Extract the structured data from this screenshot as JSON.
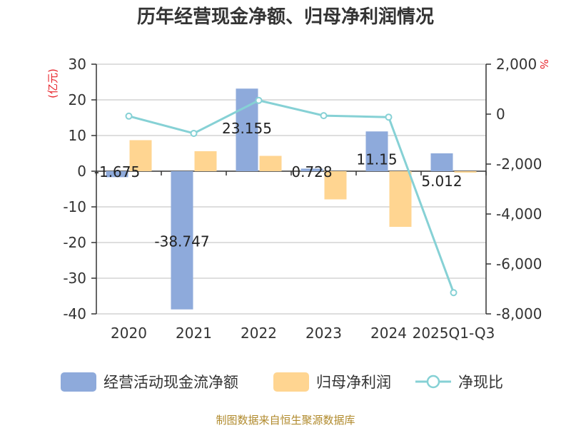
{
  "chart_data": {
    "type": "bar",
    "title": "历年经营现金净额、归母净利润情况",
    "categories": [
      "2020",
      "2021",
      "2022",
      "2023",
      "2024",
      "2025Q1-Q3"
    ],
    "left_axis": {
      "unit": "(亿元)",
      "ylim": [
        -40,
        30
      ],
      "ticks": [
        "30",
        "20",
        "10",
        "0",
        "-10",
        "-20",
        "-30",
        "-40"
      ]
    },
    "right_axis": {
      "unit": "%",
      "ylim": [
        -8000,
        2000
      ],
      "ticks": [
        "2,000",
        "0",
        "-2,000",
        "-4,000",
        "-6,000",
        "-8,000"
      ]
    },
    "series": [
      {
        "name": "经营活动现金流净额",
        "type": "bar",
        "axis": "left",
        "color": "#8eaadb",
        "values": [
          -1.675,
          -38.747,
          23.155,
          0.728,
          11.15,
          5.012
        ],
        "labels": [
          "-1.675",
          "-38.747",
          "23.155",
          "0.728",
          "11.15",
          "5.012"
        ]
      },
      {
        "name": "归母净利润",
        "type": "bar",
        "axis": "left",
        "color": "#ffd591",
        "values": [
          8.7,
          5.6,
          4.3,
          -7.9,
          -15.6,
          -0.4
        ]
      },
      {
        "name": "净现比",
        "type": "line",
        "axis": "right",
        "color": "#86d1d5",
        "values": [
          -80,
          -770,
          550,
          -60,
          -120,
          -7150
        ]
      }
    ],
    "grid": true,
    "legend_position": "bottom",
    "source": "制图数据来自恒生聚源数据库"
  }
}
